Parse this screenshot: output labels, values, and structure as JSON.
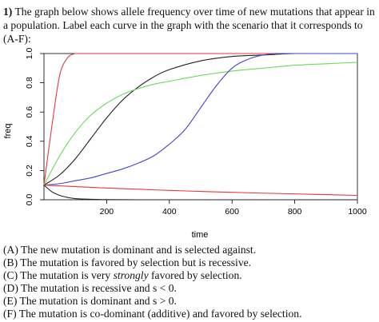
{
  "question": {
    "number": "1)",
    "text": "The graph below shows allele frequency over time of new mutations that appear in a population.  Label each curve in the graph with the scenario that it corresponds to (A-F):"
  },
  "chart_data": {
    "type": "line",
    "xlabel": "time",
    "ylabel": "freq",
    "xlim": [
      0,
      1000
    ],
    "ylim": [
      0,
      1
    ],
    "xticks": [
      200,
      400,
      600,
      800,
      1000
    ],
    "yticks": [
      0.0,
      0.2,
      0.4,
      0.6,
      0.8,
      1.0
    ],
    "xtick_labels": [
      "200",
      "400",
      "600",
      "800",
      "1000"
    ],
    "ytick_labels": [
      "0.0",
      "0.2",
      "0.4",
      "0.6",
      "0.8",
      "1.0"
    ],
    "grid": false,
    "legend": "none",
    "series": [
      {
        "color": "#e8393a",
        "x": [
          0,
          25,
          50,
          75,
          100,
          125,
          150,
          200,
          1000
        ],
        "y": [
          0.1,
          0.5,
          0.85,
          0.97,
          1.0,
          1.0,
          1.0,
          1.0,
          1.0
        ]
      },
      {
        "color": "#222222",
        "x": [
          0,
          50,
          100,
          150,
          200,
          250,
          300,
          350,
          400,
          500,
          600,
          700,
          800,
          900,
          1000
        ],
        "y": [
          0.1,
          0.17,
          0.28,
          0.42,
          0.56,
          0.68,
          0.77,
          0.84,
          0.89,
          0.95,
          0.98,
          0.99,
          1.0,
          1.0,
          1.0
        ]
      },
      {
        "color": "#66dd55",
        "x": [
          0,
          50,
          100,
          150,
          200,
          250,
          300,
          350,
          400,
          500,
          600,
          700,
          800,
          900,
          1000
        ],
        "y": [
          0.1,
          0.3,
          0.46,
          0.58,
          0.66,
          0.72,
          0.76,
          0.79,
          0.81,
          0.85,
          0.88,
          0.9,
          0.92,
          0.93,
          0.94
        ]
      },
      {
        "color": "#4444cc",
        "x": [
          0,
          50,
          100,
          150,
          200,
          250,
          300,
          350,
          400,
          450,
          500,
          550,
          600,
          650,
          700,
          750,
          800,
          900,
          1000
        ],
        "y": [
          0.1,
          0.11,
          0.13,
          0.15,
          0.18,
          0.21,
          0.25,
          0.3,
          0.38,
          0.48,
          0.63,
          0.78,
          0.9,
          0.96,
          0.99,
          1.0,
          1.0,
          1.0,
          1.0
        ]
      },
      {
        "color": "#e8393a",
        "x": [
          0,
          100,
          200,
          300,
          400,
          500,
          600,
          700,
          800,
          900,
          1000
        ],
        "y": [
          0.1,
          0.09,
          0.08,
          0.072,
          0.064,
          0.057,
          0.051,
          0.045,
          0.04,
          0.035,
          0.03
        ]
      },
      {
        "color": "#222222",
        "x": [
          0,
          25,
          50,
          75,
          100,
          150,
          200,
          300,
          400,
          1000
        ],
        "y": [
          0.1,
          0.055,
          0.03,
          0.016,
          0.008,
          0.003,
          0.001,
          0.0,
          0.0,
          0.0
        ]
      }
    ]
  },
  "options": [
    {
      "pre": "(A) The new mutation is dominant and is selected against.",
      "em": "",
      "post": ""
    },
    {
      "pre": "(B) The mutation is favored by selection but is recessive.",
      "em": "",
      "post": ""
    },
    {
      "pre": "(C) The mutation is very ",
      "em": "strongly",
      "post": " favored by selection."
    },
    {
      "pre": "(D) The mutation is recessive and s < 0.",
      "em": "",
      "post": ""
    },
    {
      "pre": "(E) The mutation is dominant and s > 0.",
      "em": "",
      "post": ""
    },
    {
      "pre": "(F) The mutation is co-dominant (additive) and favored by selection.",
      "em": "",
      "post": ""
    }
  ]
}
